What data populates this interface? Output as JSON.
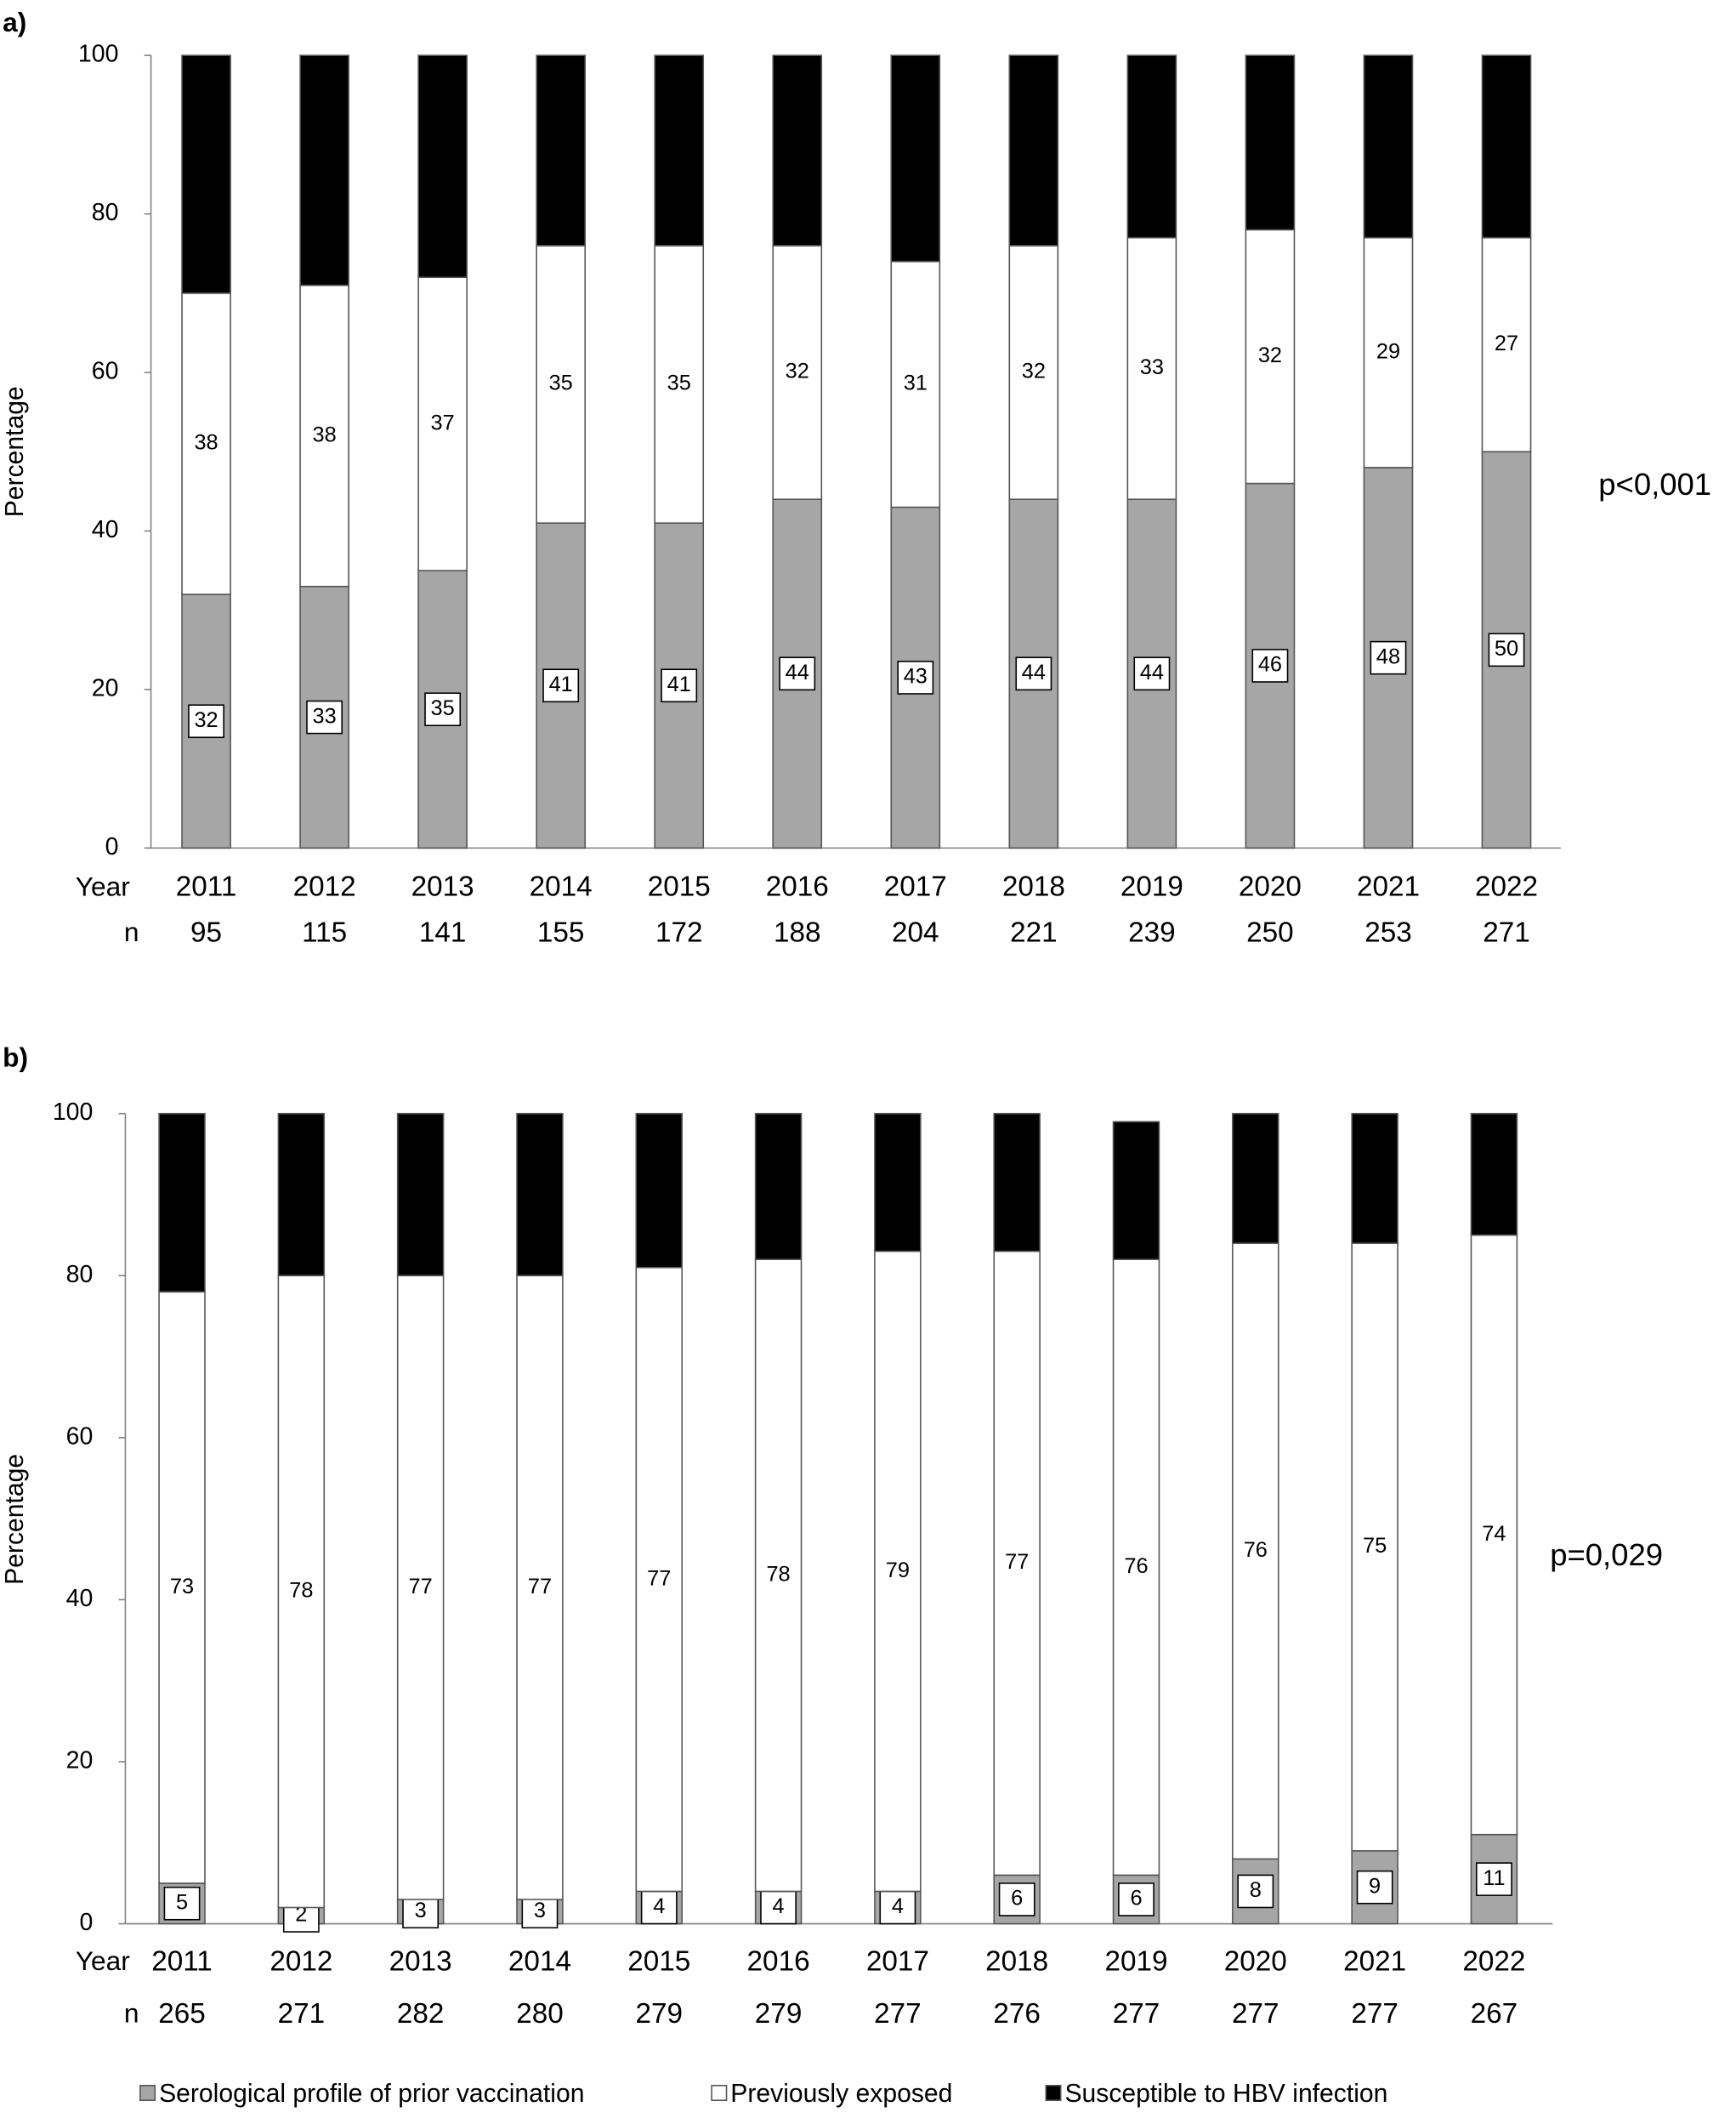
{
  "chart_data": [
    {
      "type": "stacked-bar",
      "panel_label": "a)",
      "y_label": "Percentage",
      "annotation": "p<0,001",
      "category_label": "Year",
      "n_label": "n",
      "categories": [
        "2011",
        "2012",
        "2013",
        "2014",
        "2015",
        "2016",
        "2017",
        "2018",
        "2019",
        "2020",
        "2021",
        "2022"
      ],
      "n": [
        95,
        115,
        141,
        155,
        172,
        188,
        204,
        221,
        239,
        250,
        253,
        271
      ],
      "ylim": [
        0,
        100
      ],
      "yticks": [
        0,
        20,
        40,
        60,
        80,
        100
      ],
      "series": [
        {
          "name": "Serological profile of prior vaccination",
          "color": "#a6a6a6",
          "values": [
            32,
            33,
            35,
            41,
            41,
            44,
            43,
            44,
            44,
            46,
            48,
            50
          ]
        },
        {
          "name": "Previously exposed",
          "color": "#ffffff",
          "values": [
            38,
            38,
            37,
            35,
            35,
            32,
            31,
            32,
            33,
            32,
            29,
            27
          ]
        },
        {
          "name": "Susceptible to HBV infection",
          "color": "#000000",
          "values": [
            30,
            29,
            28,
            24,
            24,
            24,
            26,
            24,
            23,
            22,
            23,
            23
          ]
        }
      ]
    },
    {
      "type": "stacked-bar",
      "panel_label": "b)",
      "y_label": "Percentage",
      "annotation": "p=0,029",
      "category_label": "Year",
      "n_label": "n",
      "categories": [
        "2011",
        "2012",
        "2013",
        "2014",
        "2015",
        "2016",
        "2017",
        "2018",
        "2019",
        "2020",
        "2021",
        "2022"
      ],
      "n": [
        265,
        271,
        282,
        280,
        279,
        279,
        277,
        276,
        277,
        277,
        277,
        267
      ],
      "ylim": [
        0,
        100
      ],
      "yticks": [
        0,
        20,
        40,
        60,
        80,
        100
      ],
      "series": [
        {
          "name": "Serological profile of prior vaccination",
          "color": "#a6a6a6",
          "values": [
            5,
            2,
            3,
            3,
            4,
            4,
            4,
            6,
            6,
            8,
            9,
            11
          ]
        },
        {
          "name": "Previously exposed",
          "color": "#ffffff",
          "values": [
            73,
            78,
            77,
            77,
            77,
            78,
            79,
            77,
            76,
            76,
            75,
            74
          ]
        },
        {
          "name": "Susceptible to HBV infection",
          "color": "#000000",
          "values": [
            22,
            20,
            20,
            20,
            19,
            18,
            17,
            17,
            17,
            16,
            16,
            15
          ]
        }
      ]
    }
  ]
}
